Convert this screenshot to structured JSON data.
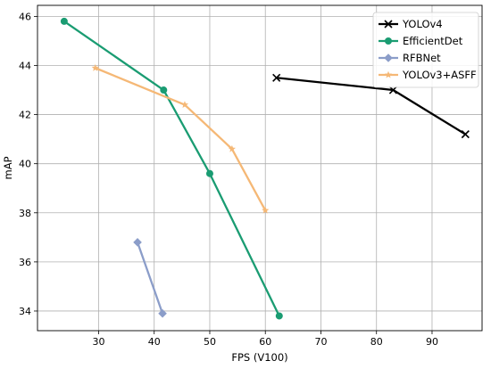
{
  "chart_data": {
    "type": "line",
    "title": "",
    "xlabel": "FPS (V100)",
    "ylabel": "mAP",
    "xlim": [
      19,
      99
    ],
    "ylim": [
      33.2,
      46.45
    ],
    "xticks": [
      30,
      40,
      50,
      60,
      70,
      80,
      90
    ],
    "yticks": [
      34,
      36,
      38,
      40,
      42,
      44,
      46
    ],
    "grid": true,
    "legend_position": "top-right",
    "series": [
      {
        "name": "YOLOv4",
        "color": "#000000",
        "marker": "x",
        "x": [
          62,
          83,
          96
        ],
        "y": [
          43.5,
          43.0,
          41.2
        ]
      },
      {
        "name": "EfficientDet",
        "color": "#1a9c72",
        "marker": "circle",
        "x": [
          23.8,
          41.7,
          50,
          62.5
        ],
        "y": [
          45.8,
          43.0,
          39.6,
          33.8
        ]
      },
      {
        "name": "RFBNet",
        "color": "#8b9dc9",
        "marker": "diamond",
        "x": [
          37,
          41.5
        ],
        "y": [
          36.8,
          33.9
        ]
      },
      {
        "name": "YOLOv3+ASFF",
        "color": "#f5b876",
        "marker": "star",
        "x": [
          29.4,
          45.5,
          54,
          60
        ],
        "y": [
          43.9,
          42.4,
          40.6,
          38.1
        ]
      }
    ]
  }
}
